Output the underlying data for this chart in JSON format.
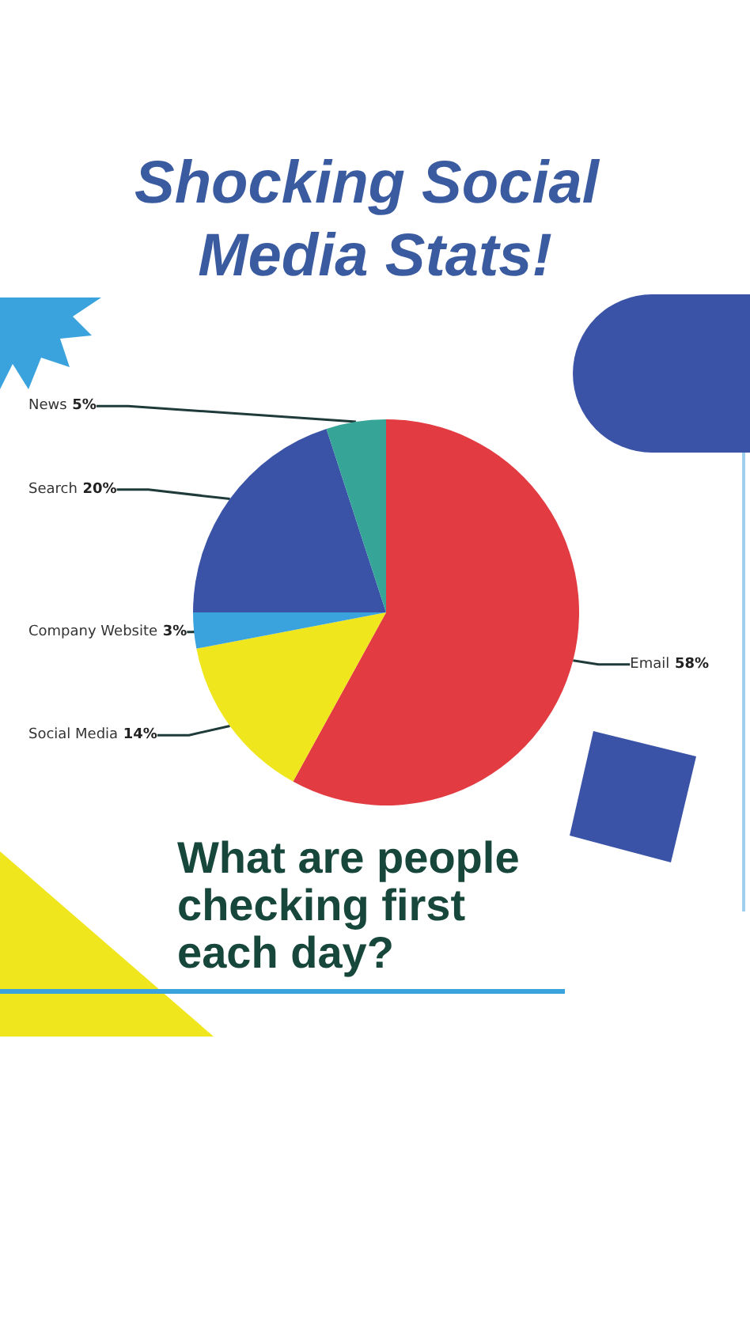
{
  "chart_data": {
    "type": "pie",
    "title": "Shocking Social Media Stats!",
    "subtitle": "What are people checking first each day?",
    "categories": [
      "Email",
      "Social Media",
      "Company Website",
      "Search",
      "News"
    ],
    "values": [
      58,
      14,
      3,
      20,
      5
    ],
    "value_labels": [
      "58%",
      "14%",
      "3%",
      "20%",
      "5%"
    ],
    "colors": [
      "#e23b42",
      "#efe61e",
      "#3aa3de",
      "#3a53a6",
      "#36a597"
    ],
    "legend": false
  }
}
